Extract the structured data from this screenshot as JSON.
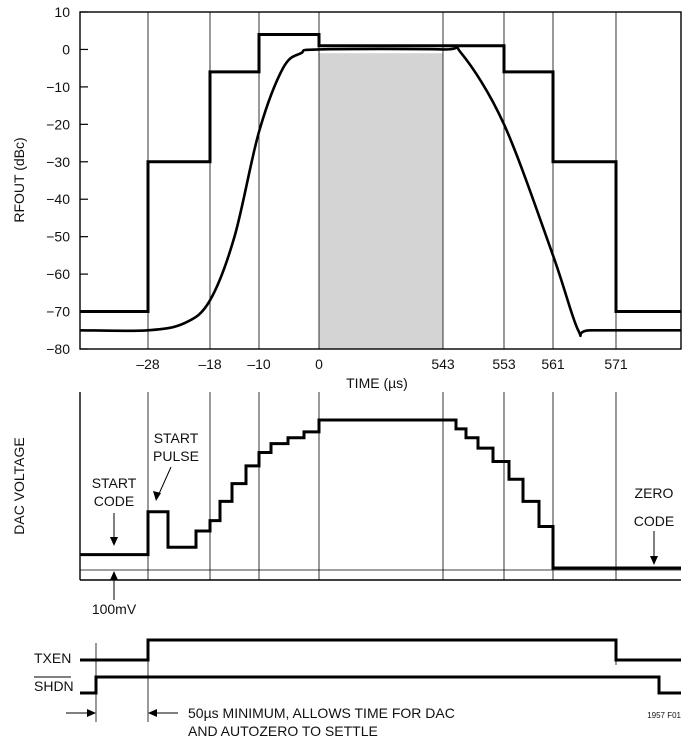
{
  "chart_data": [
    {
      "type": "line",
      "ylabel": "RFOUT (dBc)",
      "xlabel": "TIME (µs)",
      "ylim": [
        -80,
        10
      ],
      "yticks": [
        10,
        0,
        -10,
        -20,
        -30,
        -40,
        -50,
        -60,
        -70,
        -80
      ],
      "ytick_labels": [
        "10",
        "0",
        "−10",
        "−20",
        "−30",
        "−40",
        "−50",
        "−60",
        "−70",
        "−80"
      ],
      "x_time_ticks": [
        -28,
        -18,
        -10,
        0,
        543,
        553,
        561,
        571
      ],
      "x_tick_labels": [
        "–28",
        "–18",
        "–10",
        "0",
        "543",
        "553",
        "561",
        "571"
      ],
      "grid": true,
      "shaded_region": {
        "x_start": 0,
        "x_end": 543,
        "y_top": -1,
        "y_bottom": -80,
        "color": "#d4d4d4"
      },
      "series": [
        {
          "values_by_segment": [
            {
              "x_from": "start",
              "x_to": -28,
              "y": -70
            },
            {
              "x_from": -28,
              "x_to": -18,
              "y": -30
            },
            {
              "x_from": -18,
              "x_to": -10,
              "y": -6
            },
            {
              "x_from": -10,
              "x_to": 0,
              "y": 4
            },
            {
              "x_from": 0,
              "x_to": 553,
              "y": 1
            },
            {
              "x_from": 553,
              "x_to": 561,
              "y": -6
            },
            {
              "x_from": 561,
              "x_to": 571,
              "y": -30
            },
            {
              "x_from": 571,
              "x_to": "end",
              "y": -70
            }
          ]
        },
        {
          "points": [
            [
              "start",
              -75
            ],
            [
              -28,
              -75
            ],
            [
              -22,
              -73
            ],
            [
              -18,
              -67
            ],
            [
              -14,
              -50
            ],
            [
              -10,
              -22
            ],
            [
              -6,
              -5
            ],
            [
              -3,
              -1
            ],
            [
              0,
              0
            ],
            [
              543,
              0
            ],
            [
              546,
              -1
            ],
            [
              553,
              -20
            ],
            [
              561,
              -55
            ],
            [
              565,
              -75
            ],
            [
              567,
              -75
            ],
            [
              "end",
              -75
            ]
          ]
        }
      ]
    },
    {
      "type": "line",
      "ylabel": "DAC VOLTAGE",
      "x_time_ticks": [
        -28,
        -18,
        -10,
        0,
        543,
        553,
        561,
        571
      ],
      "baseline_label": "100mV",
      "annotations": [
        "START CODE",
        "START PULSE",
        "ZERO CODE"
      ],
      "series": [
        {
          "description_levels_relative": [
            0.09,
            0.09,
            0.38,
            0.38,
            0.14,
            0.14,
            0.25,
            0.32,
            0.45,
            0.57,
            0.69,
            0.78,
            0.84,
            0.88,
            0.92,
            1.0,
            1.0,
            0.94,
            0.88,
            0.81,
            0.72,
            0.6,
            0.45,
            0.28,
            0.0,
            0.0
          ]
        }
      ]
    },
    {
      "type": "line",
      "series_labels": [
        "TXEN",
        "SHDN"
      ],
      "annotation": "50µs MINIMUM, ALLOWS TIME FOR DAC",
      "annotation_line2": "AND AUTOZERO TO SETTLE",
      "figure_id": "1957 F01"
    }
  ]
}
